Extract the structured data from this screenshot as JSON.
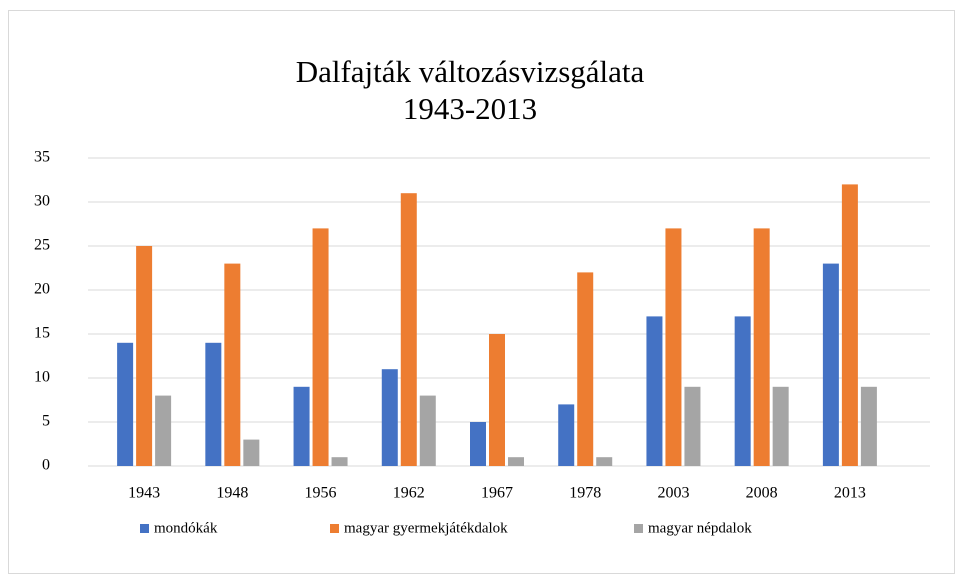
{
  "chart_data": {
    "type": "bar",
    "title": [
      "Dalfajták változásvizsgálata",
      "1943-2013"
    ],
    "categories": [
      "1943",
      "1948",
      "1956",
      "1962",
      "1967",
      "1978",
      "2003",
      "2008",
      "2013"
    ],
    "series": [
      {
        "name": "mondókák",
        "color": "#4472c4",
        "values": [
          14,
          14,
          9,
          11,
          5,
          7,
          17,
          17,
          23
        ]
      },
      {
        "name": "magyar gyermekjátékdalok",
        "color": "#ed7d31",
        "values": [
          25,
          23,
          27,
          31,
          15,
          22,
          27,
          27,
          32
        ]
      },
      {
        "name": "magyar népdalok",
        "color": "#a5a5a5",
        "values": [
          8,
          3,
          1,
          8,
          1,
          1,
          9,
          9,
          9
        ]
      }
    ],
    "ylim": [
      0,
      35
    ],
    "yticks": [
      0,
      5,
      10,
      15,
      20,
      25,
      30,
      35
    ],
    "grid": true,
    "legend": "bottom"
  }
}
